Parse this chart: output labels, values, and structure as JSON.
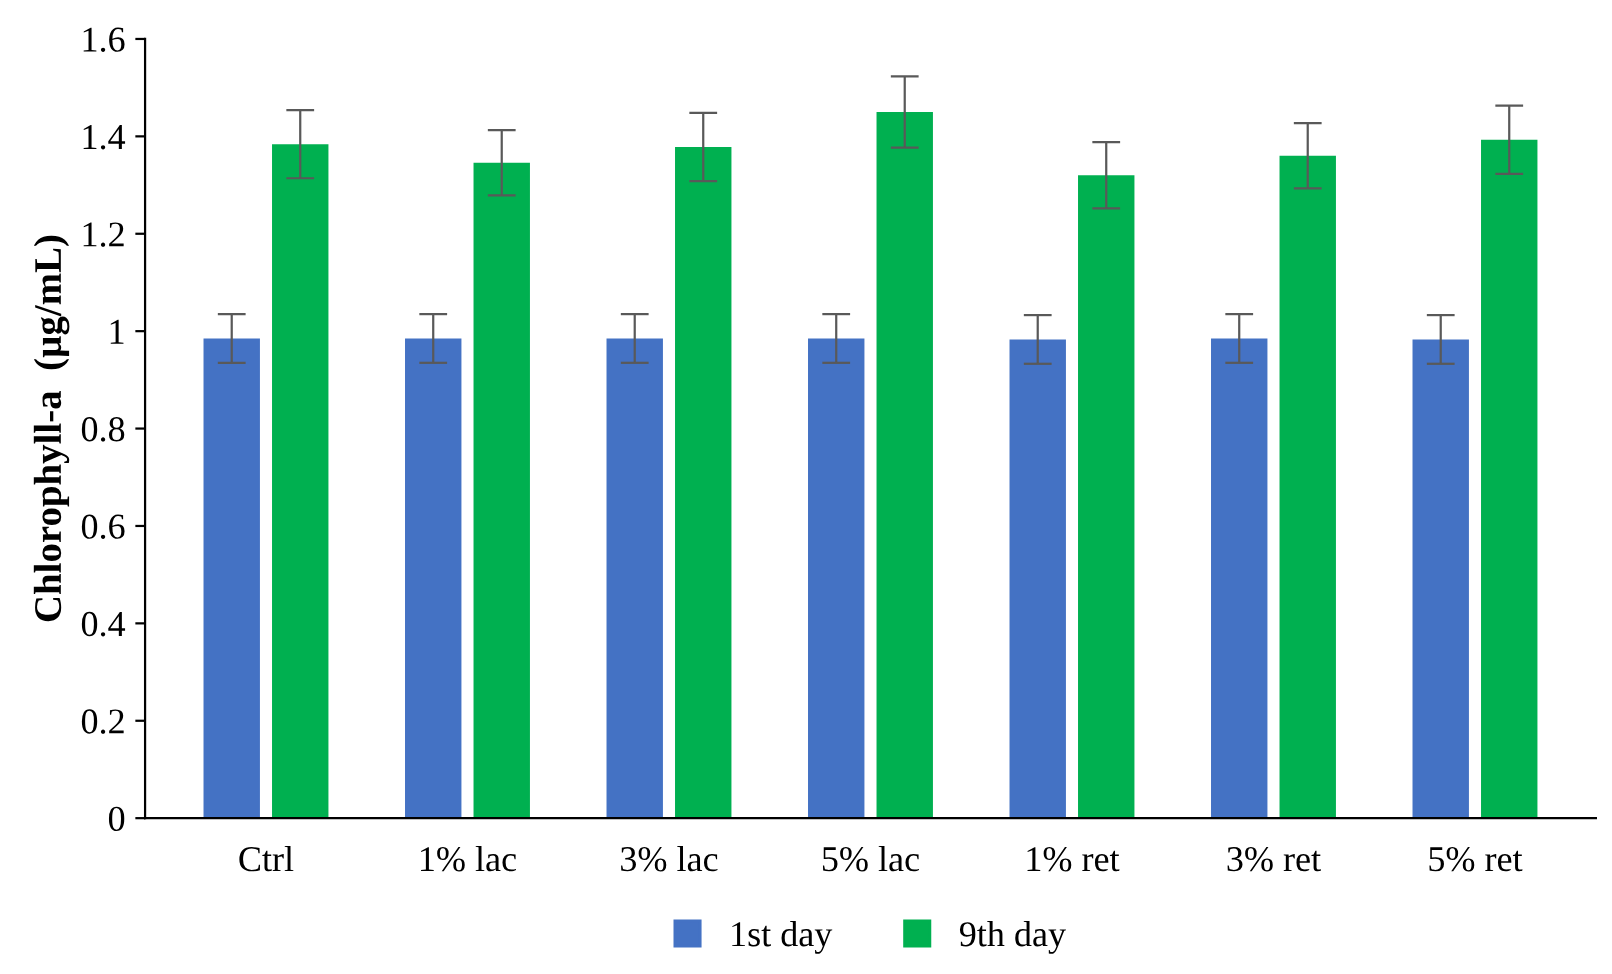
{
  "chart_data": {
    "type": "bar",
    "ylabel": "Chlorophyll-a  (µg/mL)",
    "categories": [
      "Ctrl",
      "1% lac",
      "3% lac",
      "5% lac",
      "1% ret",
      "3% ret",
      "5% ret"
    ],
    "series": [
      {
        "name": "1st day",
        "color": "#4472c4",
        "values": [
          0.985,
          0.985,
          0.985,
          0.985,
          0.983,
          0.985,
          0.983
        ],
        "errors": [
          0.05,
          0.05,
          0.05,
          0.05,
          0.05,
          0.05,
          0.05
        ]
      },
      {
        "name": "9th day",
        "color": "#00b050",
        "values": [
          1.384,
          1.346,
          1.378,
          1.45,
          1.32,
          1.36,
          1.393
        ],
        "errors": [
          0.07,
          0.067,
          0.07,
          0.073,
          0.068,
          0.067,
          0.07
        ]
      }
    ],
    "ylim": [
      0,
      1.6
    ],
    "yticks": [
      0,
      0.2,
      0.4,
      0.6,
      0.8,
      1,
      1.2,
      1.4,
      1.6
    ],
    "grid": false,
    "legend": "bottom"
  }
}
